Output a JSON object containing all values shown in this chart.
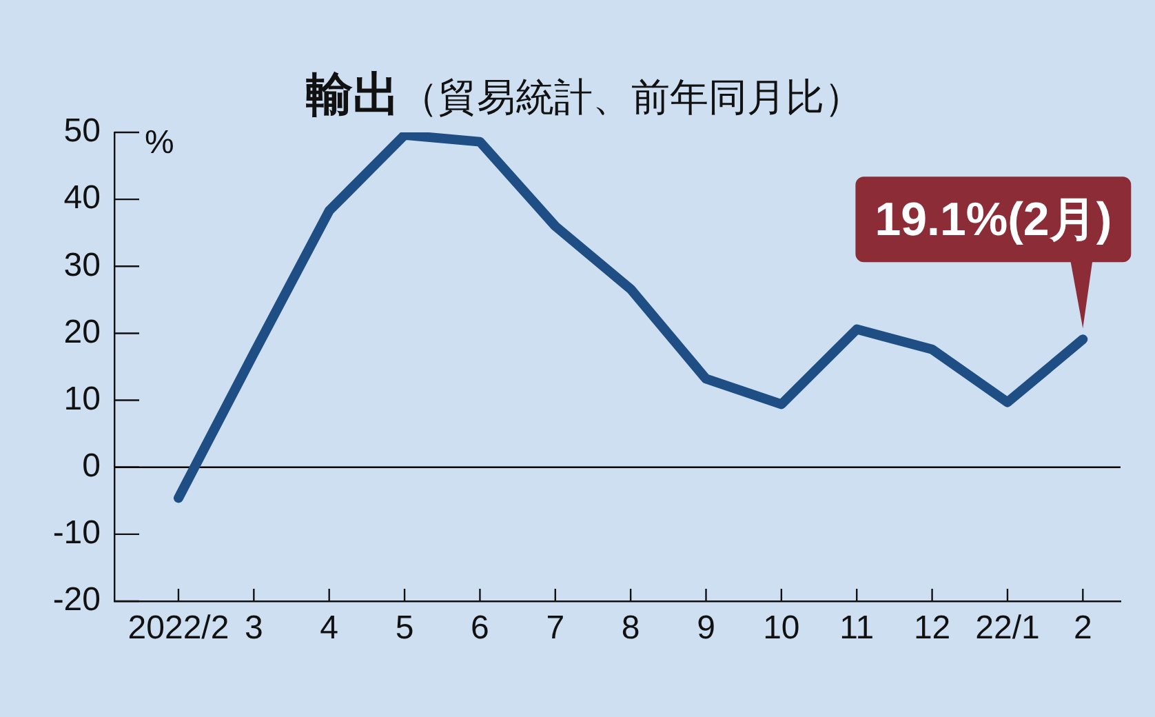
{
  "chart_data": {
    "type": "line",
    "title": "輸出",
    "subtitle": "（貿易統計、前年同月比）",
    "ylabel": "%",
    "categories": [
      "2022/2",
      "3",
      "4",
      "5",
      "6",
      "7",
      "8",
      "9",
      "10",
      "11",
      "12",
      "22/1",
      "2"
    ],
    "series": [
      {
        "color": "#1f4e85",
        "values": [
          -4.6,
          17,
          38.3,
          49.6,
          48.6,
          36,
          26.6,
          13.2,
          9.4,
          20.6,
          17.6,
          9.7,
          19.1
        ]
      }
    ],
    "ylim": [
      -20,
      50
    ],
    "yticks": [
      -20,
      -10,
      0,
      10,
      20,
      30,
      40,
      50
    ],
    "ref_lines": [
      {
        "axis": "y",
        "value": 0,
        "color": "#000000"
      }
    ],
    "annotations": [
      {
        "text": "19.1%(2月)",
        "x": "2",
        "y": 19.1
      }
    ],
    "marker": "none",
    "line_style": "solid",
    "grid": false,
    "legend": false
  }
}
